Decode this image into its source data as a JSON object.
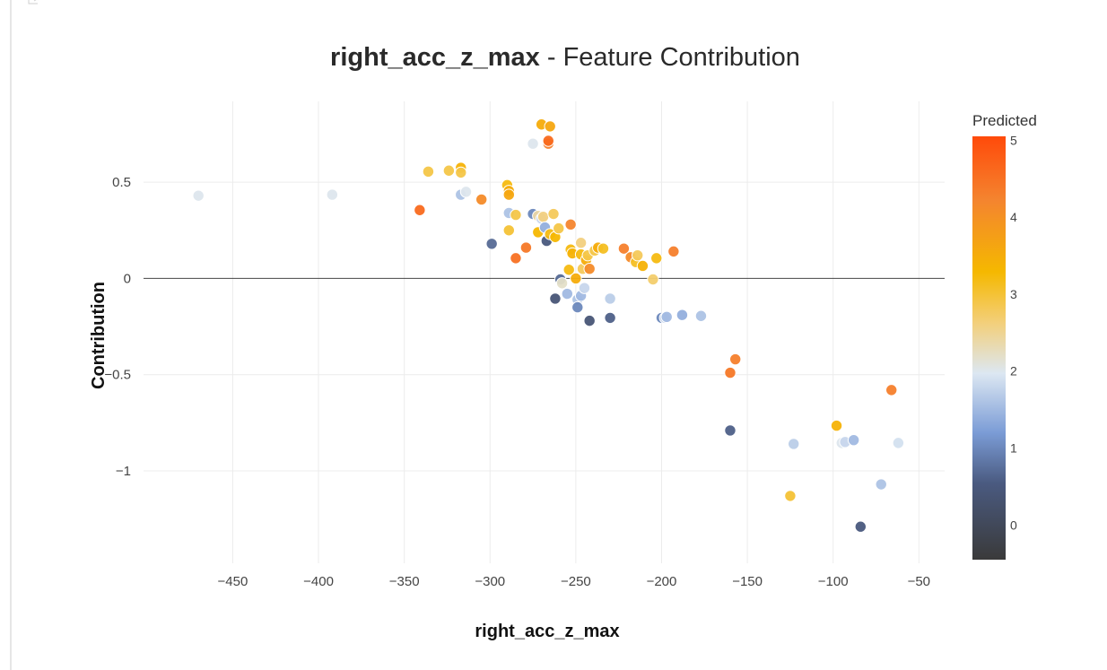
{
  "chart_data": {
    "type": "scatter",
    "title": {
      "feature": "right_acc_z_max",
      "suffix": " - Feature Contribution"
    },
    "xlabel": "right_acc_z_max",
    "ylabel": "Contribution",
    "xlim": [
      -502,
      -35
    ],
    "ylim": [
      -1.48,
      0.92
    ],
    "x_ticks": [
      -450,
      -400,
      -350,
      -300,
      -250,
      -200,
      -150,
      -100,
      -50
    ],
    "x_tick_labels": [
      "−450",
      "−400",
      "−350",
      "−300",
      "−250",
      "−200",
      "−150",
      "−100",
      "−50"
    ],
    "y_ticks": [
      0.5,
      0,
      -0.5,
      -1
    ],
    "y_tick_labels": [
      "0.5",
      "0",
      "−0.5",
      "−1"
    ],
    "colorbar": {
      "title": "Predicted",
      "range": [
        -0.45,
        5.05
      ],
      "ticks": [
        0,
        1,
        2,
        3,
        4,
        5
      ],
      "tick_labels": [
        "0",
        "1",
        "2",
        "3",
        "4",
        "5"
      ],
      "colorscale": [
        [
          0.0,
          "#3a3a3a"
        ],
        [
          0.18,
          "#4a5a80"
        ],
        [
          0.3,
          "#7b9cd6"
        ],
        [
          0.44,
          "#dce7f2"
        ],
        [
          0.56,
          "#f3cf7a"
        ],
        [
          0.68,
          "#f5b800"
        ],
        [
          0.85,
          "#f4842f"
        ],
        [
          1.0,
          "#ff4a0a"
        ]
      ]
    },
    "grid": true,
    "zero_line": true,
    "points": [
      {
        "x": -470,
        "y": 0.43,
        "c": 2.0
      },
      {
        "x": -392,
        "y": 0.435,
        "c": 2.0
      },
      {
        "x": -341,
        "y": 0.355,
        "c": 4.6
      },
      {
        "x": -336,
        "y": 0.555,
        "c": 2.9
      },
      {
        "x": -324,
        "y": 0.56,
        "c": 2.9
      },
      {
        "x": -317,
        "y": 0.575,
        "c": 3.4
      },
      {
        "x": -317,
        "y": 0.55,
        "c": 2.9
      },
      {
        "x": -317,
        "y": 0.435,
        "c": 1.6
      },
      {
        "x": -314,
        "y": 0.45,
        "c": 2.0
      },
      {
        "x": -305,
        "y": 0.41,
        "c": 4.1
      },
      {
        "x": -299,
        "y": 0.18,
        "c": 0.7
      },
      {
        "x": -290,
        "y": 0.485,
        "c": 3.2
      },
      {
        "x": -289,
        "y": 0.455,
        "c": 3.5
      },
      {
        "x": -289,
        "y": 0.435,
        "c": 3.6
      },
      {
        "x": -289,
        "y": 0.34,
        "c": 1.6
      },
      {
        "x": -289,
        "y": 0.25,
        "c": 3.0
      },
      {
        "x": -285,
        "y": 0.33,
        "c": 2.9
      },
      {
        "x": -285,
        "y": 0.105,
        "c": 4.5
      },
      {
        "x": -279,
        "y": 0.16,
        "c": 4.4
      },
      {
        "x": -275,
        "y": 0.7,
        "c": 2.0
      },
      {
        "x": -275,
        "y": 0.335,
        "c": 1.0
      },
      {
        "x": -272,
        "y": 0.325,
        "c": 2.4
      },
      {
        "x": -272,
        "y": 0.24,
        "c": 3.3
      },
      {
        "x": -270,
        "y": 0.8,
        "c": 3.5
      },
      {
        "x": -270,
        "y": 0.31,
        "c": 1.8
      },
      {
        "x": -269,
        "y": 0.32,
        "c": 2.6
      },
      {
        "x": -268,
        "y": 0.265,
        "c": 1.4
      },
      {
        "x": -267,
        "y": 0.195,
        "c": 0.5
      },
      {
        "x": -266,
        "y": 0.7,
        "c": 4.3
      },
      {
        "x": -266,
        "y": 0.715,
        "c": 4.6
      },
      {
        "x": -265,
        "y": 0.79,
        "c": 3.6
      },
      {
        "x": -265,
        "y": 0.23,
        "c": 3.2
      },
      {
        "x": -263,
        "y": 0.335,
        "c": 2.8
      },
      {
        "x": -262,
        "y": 0.215,
        "c": 3.3
      },
      {
        "x": -262,
        "y": -0.105,
        "c": 0.4
      },
      {
        "x": -260,
        "y": 0.26,
        "c": 2.9
      },
      {
        "x": -259,
        "y": -0.005,
        "c": 0.7
      },
      {
        "x": -258,
        "y": -0.025,
        "c": 2.2
      },
      {
        "x": -255,
        "y": -0.08,
        "c": 1.5
      },
      {
        "x": -254,
        "y": 0.045,
        "c": 3.2
      },
      {
        "x": -253,
        "y": 0.28,
        "c": 4.2
      },
      {
        "x": -253,
        "y": 0.15,
        "c": 3.2
      },
      {
        "x": -252,
        "y": 0.13,
        "c": 3.4
      },
      {
        "x": -250,
        "y": 0.0,
        "c": 3.5
      },
      {
        "x": -249,
        "y": -0.11,
        "c": 1.6
      },
      {
        "x": -249,
        "y": -0.15,
        "c": 1.0
      },
      {
        "x": -247,
        "y": 0.185,
        "c": 2.6
      },
      {
        "x": -247,
        "y": -0.09,
        "c": 1.5
      },
      {
        "x": -247,
        "y": 0.125,
        "c": 3.2
      },
      {
        "x": -246,
        "y": 0.05,
        "c": 2.8
      },
      {
        "x": -245,
        "y": -0.05,
        "c": 1.8
      },
      {
        "x": -244,
        "y": 0.095,
        "c": 3.5
      },
      {
        "x": -243,
        "y": 0.12,
        "c": 2.9
      },
      {
        "x": -242,
        "y": 0.05,
        "c": 4.1
      },
      {
        "x": -242,
        "y": -0.22,
        "c": 0.4
      },
      {
        "x": -239,
        "y": 0.145,
        "c": 2.9
      },
      {
        "x": -237,
        "y": 0.16,
        "c": 3.5
      },
      {
        "x": -234,
        "y": 0.155,
        "c": 3.1
      },
      {
        "x": -230,
        "y": -0.205,
        "c": 0.6
      },
      {
        "x": -230,
        "y": -0.105,
        "c": 1.7
      },
      {
        "x": -222,
        "y": 0.155,
        "c": 4.3
      },
      {
        "x": -218,
        "y": 0.11,
        "c": 4.1
      },
      {
        "x": -215,
        "y": 0.085,
        "c": 3.1
      },
      {
        "x": -214,
        "y": 0.12,
        "c": 2.8
      },
      {
        "x": -211,
        "y": 0.065,
        "c": 3.4
      },
      {
        "x": -205,
        "y": -0.005,
        "c": 2.7
      },
      {
        "x": -203,
        "y": 0.105,
        "c": 3.2
      },
      {
        "x": -200,
        "y": -0.205,
        "c": 1.0
      },
      {
        "x": -198,
        "y": -0.205,
        "c": 1.8
      },
      {
        "x": -197,
        "y": -0.2,
        "c": 1.5
      },
      {
        "x": -193,
        "y": 0.14,
        "c": 4.3
      },
      {
        "x": -188,
        "y": -0.19,
        "c": 1.4
      },
      {
        "x": -177,
        "y": -0.195,
        "c": 1.6
      },
      {
        "x": -160,
        "y": -0.49,
        "c": 4.4
      },
      {
        "x": -160,
        "y": -0.79,
        "c": 0.6
      },
      {
        "x": -157,
        "y": -0.42,
        "c": 4.3
      },
      {
        "x": -125,
        "y": -1.13,
        "c": 3.0
      },
      {
        "x": -123,
        "y": -0.86,
        "c": 1.7
      },
      {
        "x": -98,
        "y": -0.765,
        "c": 3.4
      },
      {
        "x": -95,
        "y": -0.855,
        "c": 2.0
      },
      {
        "x": -93,
        "y": -0.85,
        "c": 1.8
      },
      {
        "x": -88,
        "y": -0.84,
        "c": 1.5
      },
      {
        "x": -84,
        "y": -1.29,
        "c": 0.5
      },
      {
        "x": -72,
        "y": -1.07,
        "c": 1.6
      },
      {
        "x": -66,
        "y": -0.58,
        "c": 4.3
      },
      {
        "x": -62,
        "y": -0.855,
        "c": 1.9
      }
    ]
  }
}
